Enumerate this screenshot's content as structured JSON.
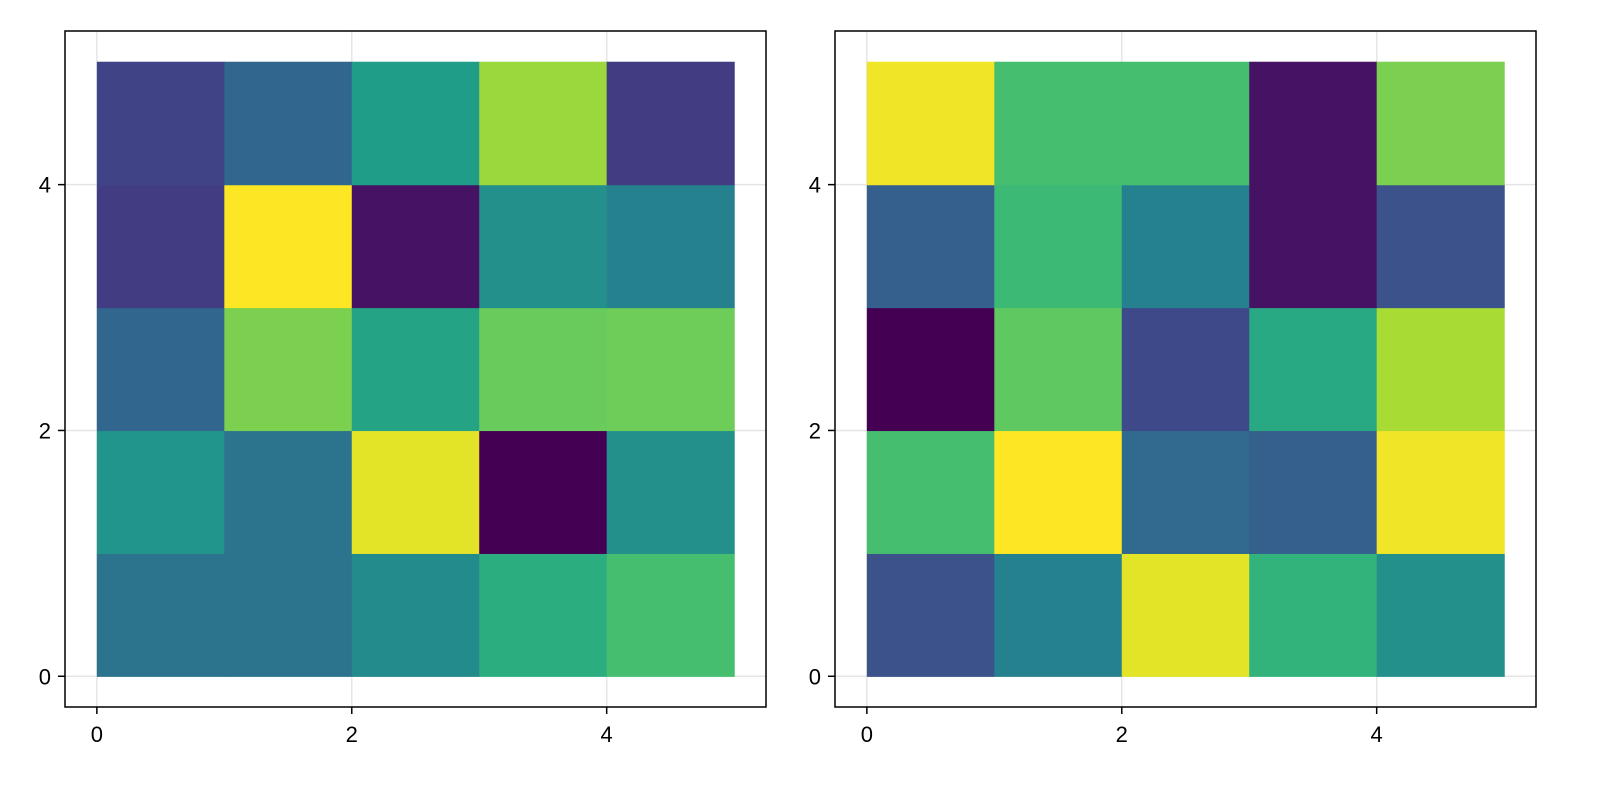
{
  "chart_data": [
    {
      "type": "heatmap",
      "x_edges": [
        0,
        1,
        2,
        3,
        4,
        5
      ],
      "y_edges": [
        0,
        1,
        2,
        3,
        4,
        5
      ],
      "xlim": [
        -0.25,
        5.25
      ],
      "ylim": [
        -0.25,
        5.25
      ],
      "xticks": [
        0,
        2,
        4
      ],
      "yticks": [
        0,
        2,
        4
      ],
      "xtick_labels": [
        "0",
        "2",
        "4"
      ],
      "ytick_labels": [
        "0",
        "2",
        "4"
      ],
      "grid": true,
      "colormap": "viridis",
      "title": "",
      "xlabel": "",
      "ylabel": "",
      "rows_bottom_to_top": [
        [
          0.38,
          0.38,
          0.48,
          0.62,
          0.7
        ],
        [
          0.52,
          0.38,
          0.96,
          0.0,
          0.5
        ],
        [
          0.33,
          0.8,
          0.58,
          0.77,
          0.78
        ],
        [
          0.18,
          1.0,
          0.05,
          0.5,
          0.44
        ],
        [
          0.2,
          0.33,
          0.55,
          0.85,
          0.18
        ]
      ]
    },
    {
      "type": "heatmap",
      "x_edges": [
        0,
        1,
        2,
        3,
        4,
        5
      ],
      "y_edges": [
        0,
        1,
        2,
        3,
        4,
        5
      ],
      "xlim": [
        -0.25,
        5.25
      ],
      "ylim": [
        -0.25,
        5.25
      ],
      "xticks": [
        0,
        2,
        4
      ],
      "yticks": [
        0,
        2,
        4
      ],
      "xtick_labels": [
        "0",
        "2",
        "4"
      ],
      "ytick_labels": [
        "0",
        "2",
        "4"
      ],
      "grid": true,
      "colormap": "viridis",
      "title": "",
      "xlabel": "",
      "ylabel": "",
      "rows_bottom_to_top": [
        [
          0.25,
          0.44,
          0.96,
          0.65,
          0.5
        ],
        [
          0.7,
          1.0,
          0.34,
          0.3,
          0.98
        ],
        [
          0.0,
          0.75,
          0.22,
          0.6,
          0.87
        ],
        [
          0.3,
          0.68,
          0.44,
          0.05,
          0.25
        ],
        [
          0.98,
          0.7,
          0.7,
          0.05,
          0.8
        ]
      ]
    }
  ]
}
